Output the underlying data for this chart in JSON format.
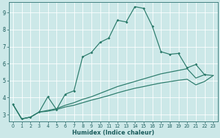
{
  "xlabel": "Humidex (Indice chaleur)",
  "bg_color": "#cce8e8",
  "grid_color": "#b0d4d4",
  "line_color": "#2a7a6a",
  "xlim": [
    -0.5,
    23.5
  ],
  "ylim": [
    2.6,
    9.6
  ],
  "yticks": [
    3,
    4,
    5,
    6,
    7,
    8,
    9
  ],
  "xticks": [
    0,
    1,
    2,
    3,
    4,
    5,
    6,
    7,
    8,
    9,
    10,
    11,
    12,
    13,
    14,
    15,
    16,
    17,
    18,
    19,
    20,
    21,
    22,
    23
  ],
  "series1_x": [
    0,
    1,
    2,
    3,
    4,
    5,
    6,
    7,
    8,
    9,
    10,
    11,
    12,
    13,
    14,
    15,
    16,
    17,
    18,
    19,
    20,
    21,
    22
  ],
  "series1_y": [
    3.6,
    2.75,
    2.85,
    3.15,
    4.05,
    3.3,
    4.2,
    4.4,
    6.4,
    6.65,
    7.25,
    7.5,
    8.55,
    8.45,
    9.35,
    9.25,
    8.2,
    6.7,
    6.55,
    6.6,
    5.75,
    5.95,
    5.35
  ],
  "series2_x": [
    0,
    1,
    2,
    3,
    4,
    5,
    6,
    7,
    8,
    9,
    10,
    11,
    12,
    13,
    14,
    15,
    16,
    17,
    18,
    19,
    20,
    21,
    22,
    23
  ],
  "series2_y": [
    3.6,
    2.75,
    2.85,
    3.15,
    3.25,
    3.35,
    3.55,
    3.7,
    3.9,
    4.05,
    4.25,
    4.45,
    4.65,
    4.8,
    4.95,
    5.1,
    5.25,
    5.4,
    5.5,
    5.6,
    5.7,
    5.15,
    5.35,
    5.3
  ],
  "series3_x": [
    0,
    1,
    2,
    3,
    4,
    5,
    6,
    7,
    8,
    9,
    10,
    11,
    12,
    13,
    14,
    15,
    16,
    17,
    18,
    19,
    20,
    21,
    22,
    23
  ],
  "series3_y": [
    3.6,
    2.75,
    2.85,
    3.15,
    3.2,
    3.3,
    3.45,
    3.55,
    3.7,
    3.85,
    3.98,
    4.12,
    4.28,
    4.42,
    4.55,
    4.65,
    4.76,
    4.86,
    4.94,
    5.02,
    5.08,
    4.75,
    4.95,
    5.3
  ]
}
